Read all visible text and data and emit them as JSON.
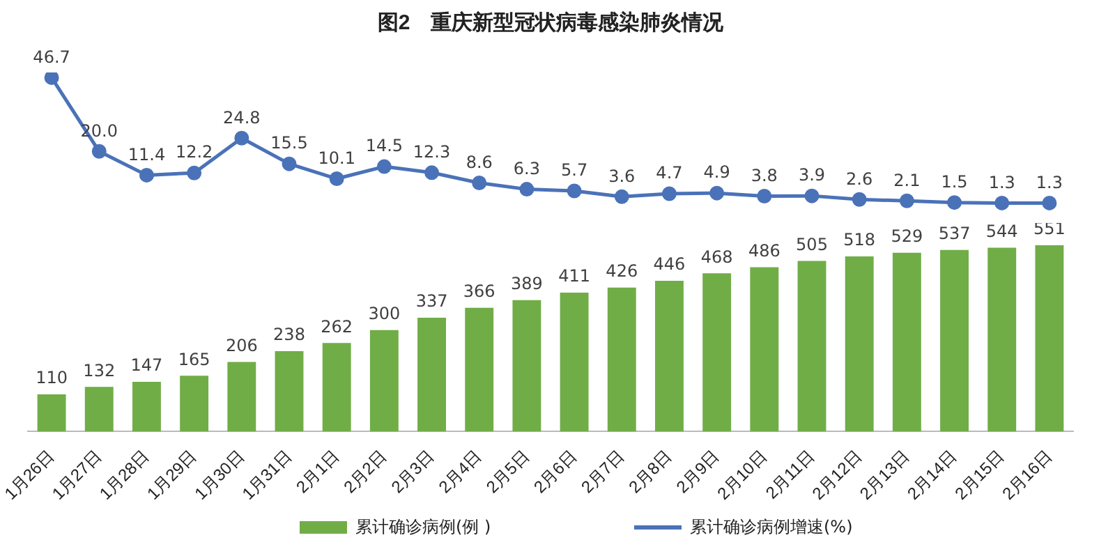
{
  "chart_data": [
    {
      "type": "line",
      "title": "图2　重庆新型冠状病毒感染肺炎情况",
      "categories": [
        null,
        null,
        null,
        null,
        null,
        null,
        null,
        null,
        null,
        null,
        null,
        null,
        null,
        null,
        null,
        null,
        null,
        null,
        null,
        null,
        null,
        null
      ],
      "series": [
        {
          "name": "累计确诊病例增速(%)",
          "color": "#4a72b8",
          "values": [
            46.7,
            20.0,
            11.4,
            12.2,
            24.8,
            15.5,
            10.1,
            14.5,
            12.3,
            8.6,
            6.3,
            5.7,
            3.6,
            4.7,
            4.9,
            3.8,
            3.9,
            2.6,
            2.1,
            1.5,
            1.3,
            1.3
          ],
          "value_labels": [
            "46.7",
            "20.0",
            "11.4",
            "12.2",
            "24.8",
            "15.5",
            "10.1",
            "14.5",
            "12.3",
            "8.6",
            "6.3",
            "5.7",
            "3.6",
            "4.7",
            "4.9",
            "3.8",
            "3.9",
            "2.6",
            "2.1",
            "1.5",
            "1.3",
            "1.3"
          ]
        }
      ],
      "marker": "circle",
      "legend": "bottom",
      "tick_labels": false
    },
    {
      "type": "bar",
      "categories": [
        "1月26日",
        "1月27日",
        "1月28日",
        "1月29日",
        "1月30日",
        "1月31日",
        "2月1日",
        "2月2日",
        "2月3日",
        "2月4日",
        "2月5日",
        "2月6日",
        "2月7日",
        "2月8日",
        "2月9日",
        "2月10日",
        "2月11日",
        "2月12日",
        "2月13日",
        "2月14日",
        "2月15日",
        "2月16日"
      ],
      "series": [
        {
          "name": "累计确诊病例(例 )",
          "color": "#70ad47",
          "values": [
            110,
            132,
            147,
            165,
            206,
            238,
            262,
            300,
            337,
            366,
            389,
            411,
            426,
            446,
            468,
            486,
            505,
            518,
            529,
            537,
            544,
            551
          ]
        }
      ],
      "data_labels": true,
      "legend": "bottom",
      "tick_labels": "x"
    }
  ]
}
